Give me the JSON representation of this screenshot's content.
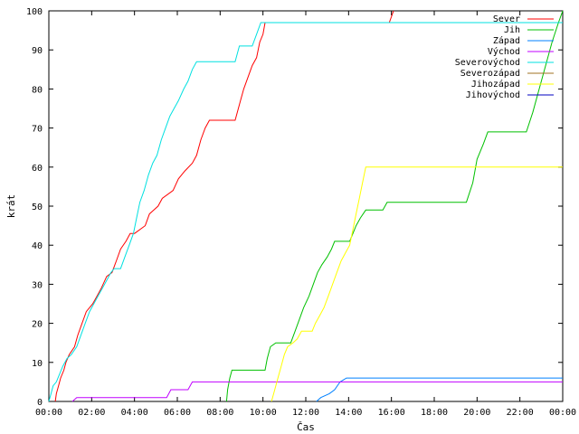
{
  "chart_data": {
    "type": "line",
    "title": "",
    "xlabel": "Čas",
    "ylabel": "krát",
    "xlim": [
      0,
      24
    ],
    "ylim": [
      0,
      100
    ],
    "x_ticks": [
      "00:00",
      "02:00",
      "04:00",
      "06:00",
      "08:00",
      "10:00",
      "12:00",
      "14:00",
      "16:00",
      "18:00",
      "20:00",
      "22:00",
      "00:00"
    ],
    "y_ticks": [
      "0",
      "10",
      "20",
      "30",
      "40",
      "50",
      "60",
      "70",
      "80",
      "90",
      "100"
    ],
    "grid": false,
    "legend_position": "top-right",
    "series": [
      {
        "name": "Sever",
        "color": "#ff0000",
        "points": [
          [
            0.3,
            0
          ],
          [
            0.35,
            2
          ],
          [
            0.45,
            4
          ],
          [
            0.55,
            6
          ],
          [
            0.7,
            8
          ],
          [
            0.8,
            10
          ],
          [
            0.95,
            12
          ],
          [
            1.2,
            14
          ],
          [
            1.35,
            17
          ],
          [
            1.55,
            20
          ],
          [
            1.75,
            23
          ],
          [
            2.05,
            25
          ],
          [
            2.25,
            27
          ],
          [
            2.45,
            29
          ],
          [
            2.7,
            32
          ],
          [
            2.95,
            33
          ],
          [
            3.15,
            36
          ],
          [
            3.35,
            39
          ],
          [
            3.6,
            41
          ],
          [
            3.8,
            43
          ],
          [
            4.0,
            43
          ],
          [
            4.5,
            45
          ],
          [
            4.7,
            48
          ],
          [
            4.9,
            49
          ],
          [
            5.1,
            50
          ],
          [
            5.3,
            52
          ],
          [
            5.8,
            54
          ],
          [
            6.05,
            57
          ],
          [
            6.35,
            59
          ],
          [
            6.7,
            61
          ],
          [
            6.9,
            63
          ],
          [
            7.1,
            67
          ],
          [
            7.3,
            70
          ],
          [
            7.5,
            72
          ],
          [
            8.7,
            72
          ],
          [
            8.8,
            74
          ],
          [
            8.95,
            77
          ],
          [
            9.1,
            80
          ],
          [
            9.3,
            83
          ],
          [
            9.5,
            86
          ],
          [
            9.7,
            88
          ],
          [
            9.85,
            92
          ],
          [
            10.0,
            94
          ],
          [
            10.1,
            97
          ],
          [
            11.0,
            97
          ],
          [
            15.9,
            97
          ],
          [
            16.1,
            100
          ]
        ]
      },
      {
        "name": "Jih",
        "color": "#00c000",
        "points": [
          [
            8.3,
            0
          ],
          [
            8.35,
            3
          ],
          [
            8.45,
            6
          ],
          [
            8.55,
            8
          ],
          [
            10.1,
            8
          ],
          [
            10.2,
            11
          ],
          [
            10.35,
            14
          ],
          [
            10.6,
            15
          ],
          [
            11.3,
            15
          ],
          [
            11.5,
            18
          ],
          [
            11.7,
            21
          ],
          [
            11.9,
            24
          ],
          [
            12.15,
            27
          ],
          [
            12.35,
            30
          ],
          [
            12.55,
            33
          ],
          [
            12.75,
            35
          ],
          [
            13.0,
            37
          ],
          [
            13.2,
            39
          ],
          [
            13.35,
            41
          ],
          [
            14.05,
            41
          ],
          [
            14.2,
            43
          ],
          [
            14.35,
            45
          ],
          [
            14.55,
            47
          ],
          [
            14.8,
            49
          ],
          [
            15.6,
            49
          ],
          [
            15.8,
            51
          ],
          [
            19.5,
            51
          ],
          [
            19.8,
            56
          ],
          [
            20.0,
            62
          ],
          [
            20.3,
            66
          ],
          [
            20.5,
            69
          ],
          [
            22.3,
            69
          ],
          [
            22.6,
            74
          ],
          [
            22.9,
            80
          ],
          [
            23.2,
            86
          ],
          [
            23.5,
            92
          ],
          [
            23.8,
            97
          ],
          [
            24.0,
            100
          ]
        ]
      },
      {
        "name": "Západ",
        "color": "#0080ff",
        "points": [
          [
            12.5,
            0
          ],
          [
            12.7,
            1
          ],
          [
            13.1,
            2
          ],
          [
            13.35,
            3
          ],
          [
            13.6,
            5
          ],
          [
            13.9,
            6
          ],
          [
            24.0,
            6
          ]
        ]
      },
      {
        "name": "Východ",
        "color": "#c000ff",
        "points": [
          [
            1.1,
            0
          ],
          [
            1.3,
            1
          ],
          [
            5.5,
            1
          ],
          [
            5.7,
            3
          ],
          [
            6.5,
            3
          ],
          [
            6.7,
            5
          ],
          [
            24.0,
            5
          ]
        ]
      },
      {
        "name": "Severovýchod",
        "color": "#00e0e0",
        "points": [
          [
            0.0,
            0
          ],
          [
            0.1,
            2
          ],
          [
            0.2,
            4
          ],
          [
            0.35,
            5
          ],
          [
            0.5,
            7
          ],
          [
            0.65,
            9
          ],
          [
            0.85,
            11
          ],
          [
            1.05,
            12
          ],
          [
            1.3,
            14
          ],
          [
            1.5,
            17
          ],
          [
            1.7,
            20
          ],
          [
            1.9,
            23
          ],
          [
            2.1,
            25
          ],
          [
            2.3,
            27
          ],
          [
            2.5,
            29
          ],
          [
            2.7,
            31
          ],
          [
            2.9,
            33
          ],
          [
            3.05,
            34
          ],
          [
            3.35,
            34
          ],
          [
            3.55,
            37
          ],
          [
            3.75,
            40
          ],
          [
            3.95,
            43
          ],
          [
            4.1,
            47
          ],
          [
            4.25,
            51
          ],
          [
            4.45,
            54
          ],
          [
            4.65,
            58
          ],
          [
            4.85,
            61
          ],
          [
            5.05,
            63
          ],
          [
            5.25,
            67
          ],
          [
            5.45,
            70
          ],
          [
            5.65,
            73
          ],
          [
            5.85,
            75
          ],
          [
            6.05,
            77
          ],
          [
            6.3,
            80
          ],
          [
            6.5,
            82
          ],
          [
            6.7,
            85
          ],
          [
            6.9,
            87
          ],
          [
            8.7,
            87
          ],
          [
            8.9,
            91
          ],
          [
            9.5,
            91
          ],
          [
            9.7,
            94
          ],
          [
            9.9,
            97
          ],
          [
            24.0,
            97
          ]
        ]
      },
      {
        "name": "Severozápad",
        "color": "#a07020",
        "points": []
      },
      {
        "name": "Jihozápad",
        "color": "#ffff00",
        "points": [
          [
            10.4,
            0
          ],
          [
            10.55,
            3
          ],
          [
            10.7,
            6
          ],
          [
            10.85,
            9
          ],
          [
            11.0,
            12
          ],
          [
            11.15,
            14
          ],
          [
            11.4,
            15
          ],
          [
            11.6,
            16
          ],
          [
            11.8,
            18
          ],
          [
            12.3,
            18
          ],
          [
            12.45,
            20
          ],
          [
            12.65,
            22
          ],
          [
            12.85,
            24
          ],
          [
            13.05,
            27
          ],
          [
            13.25,
            30
          ],
          [
            13.45,
            33
          ],
          [
            13.65,
            36
          ],
          [
            13.85,
            38
          ],
          [
            14.05,
            40
          ],
          [
            14.2,
            44
          ],
          [
            14.35,
            48
          ],
          [
            14.5,
            52
          ],
          [
            14.65,
            56
          ],
          [
            14.8,
            60
          ],
          [
            24.0,
            60
          ]
        ]
      },
      {
        "name": "Jihovýchod",
        "color": "#0000c0",
        "points": []
      }
    ]
  }
}
